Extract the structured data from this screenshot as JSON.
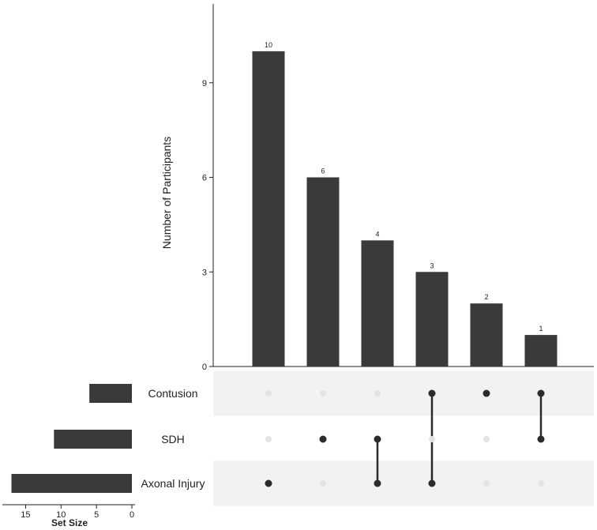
{
  "chart_data": {
    "type": "bar",
    "ylabel": "Number of Participants",
    "y_ticks": [
      "0",
      "3",
      "6",
      "9"
    ],
    "ylim": [
      0,
      11.5
    ],
    "intersections": [
      {
        "value": 10,
        "label": "10",
        "sets": [
          2
        ]
      },
      {
        "value": 6,
        "label": "6",
        "sets": [
          1
        ]
      },
      {
        "value": 4,
        "label": "4",
        "sets": [
          1,
          2
        ]
      },
      {
        "value": 3,
        "label": "3",
        "sets": [
          0,
          2
        ]
      },
      {
        "value": 2,
        "label": "2",
        "sets": [
          0
        ]
      },
      {
        "value": 1,
        "label": "1",
        "sets": [
          0,
          1
        ]
      }
    ],
    "sets": [
      {
        "name": "Contusion",
        "size": 6
      },
      {
        "name": "SDH",
        "size": 11
      },
      {
        "name": "Axonal Injury",
        "size": 17
      }
    ],
    "set_size_title": "Set Size",
    "set_size_ticks": [
      "15",
      "10",
      "5",
      "0"
    ],
    "set_size_max": 17.5,
    "colors": {
      "bar": "#3a3a3a",
      "dot_active": "#2b2b2b",
      "dot_inactive": "#e3e3e3",
      "stripe": "#f2f2f2"
    }
  }
}
